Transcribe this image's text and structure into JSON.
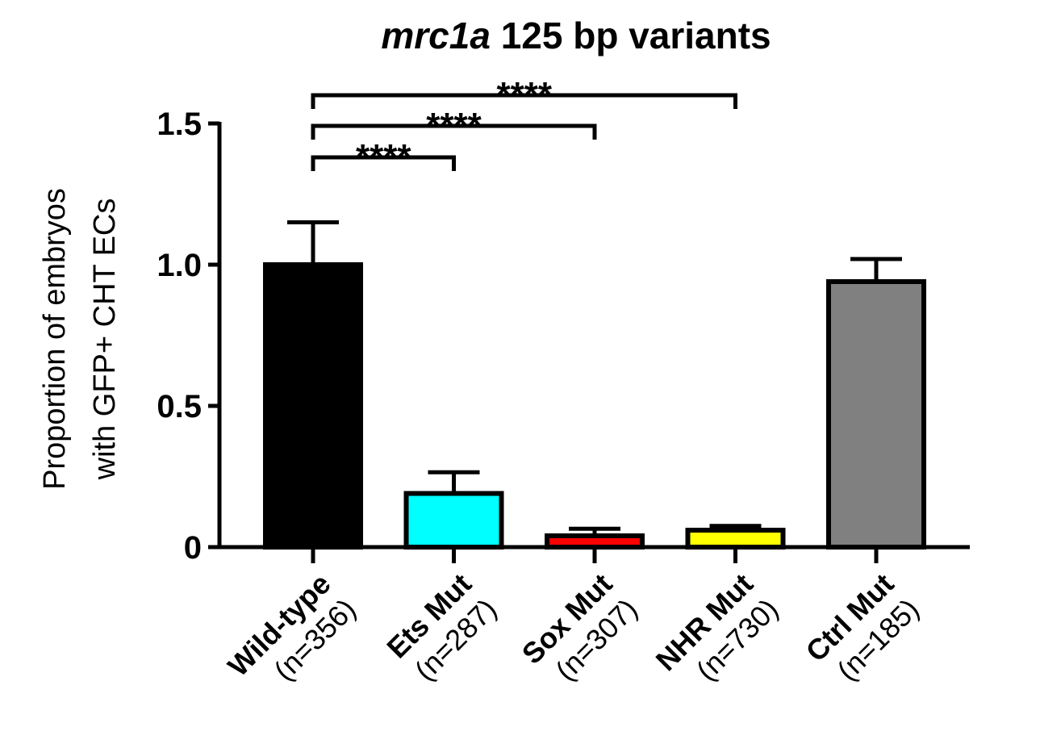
{
  "chart_data": {
    "type": "bar",
    "title_italic": "mrc1a",
    "title_rest": " 125 bp variants",
    "ylabel_line1": "Proportion of embryos",
    "ylabel_line2": "with GFP+ CHT ECs",
    "xlabel": "",
    "ylim": [
      0,
      1.5
    ],
    "yticks": [
      {
        "value": 0,
        "label": "0"
      },
      {
        "value": 0.5,
        "label": "0.5"
      },
      {
        "value": 1.0,
        "label": "1.0"
      },
      {
        "value": 1.5,
        "label": "1.5"
      }
    ],
    "categories": [
      {
        "name": "Wild-type",
        "n": "(n=356)",
        "value": 1.0,
        "error": 0.15,
        "color": "#000000"
      },
      {
        "name": "Ets Mut",
        "n": "(n=287)",
        "value": 0.19,
        "error": 0.075,
        "color": "#00ffff"
      },
      {
        "name": "Sox Mut",
        "n": "(n=307)",
        "value": 0.04,
        "error": 0.025,
        "color": "#ff0000"
      },
      {
        "name": "NHR Mut",
        "n": "(n=730)",
        "value": 0.06,
        "error": 0.015,
        "color": "#ffff00"
      },
      {
        "name": "Ctrl Mut",
        "n": "(n=185)",
        "value": 0.94,
        "error": 0.08,
        "color": "#808080"
      }
    ],
    "significance": [
      {
        "from": 0,
        "to": 1,
        "label": "****"
      },
      {
        "from": 0,
        "to": 2,
        "label": "****"
      },
      {
        "from": 0,
        "to": 3,
        "label": "****"
      }
    ],
    "grid": false,
    "legend": "none"
  }
}
